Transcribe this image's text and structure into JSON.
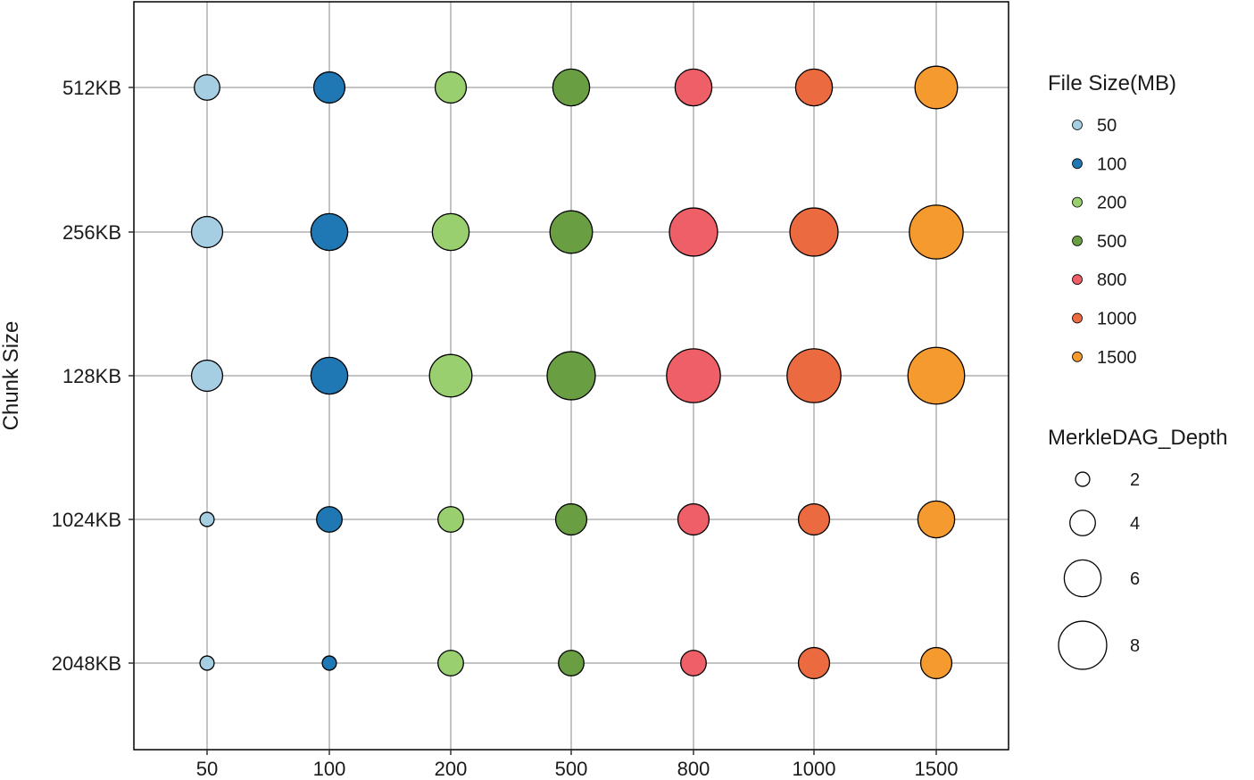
{
  "chart_data": {
    "type": "scatter",
    "ylabel": "Chunk Size",
    "x_categories": [
      "50",
      "100",
      "200",
      "500",
      "800",
      "1000",
      "1500"
    ],
    "y_categories": [
      "512KB",
      "256KB",
      "128KB",
      "1024KB",
      "2048KB"
    ],
    "grid": true,
    "legend_color": {
      "title": "File Size(MB)",
      "placement": "right",
      "entries": [
        {
          "label": "50",
          "color": "#a6cee3"
        },
        {
          "label": "100",
          "color": "#1f78b4"
        },
        {
          "label": "200",
          "color": "#99cf6e"
        },
        {
          "label": "500",
          "color": "#6a9e42"
        },
        {
          "label": "800",
          "color": "#ef5f68"
        },
        {
          "label": "1000",
          "color": "#ec6a40"
        },
        {
          "label": "1500",
          "color": "#f59a2e"
        }
      ]
    },
    "legend_size": {
      "title": "MerkleDAG_Depth",
      "placement": "right",
      "entries": [
        {
          "label": "2",
          "value": 2
        },
        {
          "label": "4",
          "value": 4
        },
        {
          "label": "6",
          "value": 6
        },
        {
          "label": "8",
          "value": 8
        }
      ]
    },
    "points": [
      {
        "x": "50",
        "y": "512KB",
        "depth": 4
      },
      {
        "x": "100",
        "y": "512KB",
        "depth": 5
      },
      {
        "x": "200",
        "y": "512KB",
        "depth": 5
      },
      {
        "x": "500",
        "y": "512KB",
        "depth": 6
      },
      {
        "x": "800",
        "y": "512KB",
        "depth": 6
      },
      {
        "x": "1000",
        "y": "512KB",
        "depth": 6
      },
      {
        "x": "1500",
        "y": "512KB",
        "depth": 7
      },
      {
        "x": "50",
        "y": "256KB",
        "depth": 5
      },
      {
        "x": "100",
        "y": "256KB",
        "depth": 6
      },
      {
        "x": "200",
        "y": "256KB",
        "depth": 6
      },
      {
        "x": "500",
        "y": "256KB",
        "depth": 7
      },
      {
        "x": "800",
        "y": "256KB",
        "depth": 8
      },
      {
        "x": "1000",
        "y": "256KB",
        "depth": 8
      },
      {
        "x": "1500",
        "y": "256KB",
        "depth": 9
      },
      {
        "x": "50",
        "y": "128KB",
        "depth": 5
      },
      {
        "x": "100",
        "y": "128KB",
        "depth": 6
      },
      {
        "x": "200",
        "y": "128KB",
        "depth": 7
      },
      {
        "x": "500",
        "y": "128KB",
        "depth": 8
      },
      {
        "x": "800",
        "y": "128KB",
        "depth": 9
      },
      {
        "x": "1000",
        "y": "128KB",
        "depth": 9
      },
      {
        "x": "1500",
        "y": "128KB",
        "depth": 9.5
      },
      {
        "x": "50",
        "y": "1024KB",
        "depth": 2
      },
      {
        "x": "100",
        "y": "1024KB",
        "depth": 4
      },
      {
        "x": "200",
        "y": "1024KB",
        "depth": 4
      },
      {
        "x": "500",
        "y": "1024KB",
        "depth": 5
      },
      {
        "x": "800",
        "y": "1024KB",
        "depth": 5
      },
      {
        "x": "1000",
        "y": "1024KB",
        "depth": 5
      },
      {
        "x": "1500",
        "y": "1024KB",
        "depth": 6
      },
      {
        "x": "50",
        "y": "2048KB",
        "depth": 2
      },
      {
        "x": "100",
        "y": "2048KB",
        "depth": 2
      },
      {
        "x": "200",
        "y": "2048KB",
        "depth": 4
      },
      {
        "x": "500",
        "y": "2048KB",
        "depth": 4
      },
      {
        "x": "800",
        "y": "2048KB",
        "depth": 4
      },
      {
        "x": "1000",
        "y": "2048KB",
        "depth": 5
      },
      {
        "x": "1500",
        "y": "2048KB",
        "depth": 5
      }
    ]
  }
}
